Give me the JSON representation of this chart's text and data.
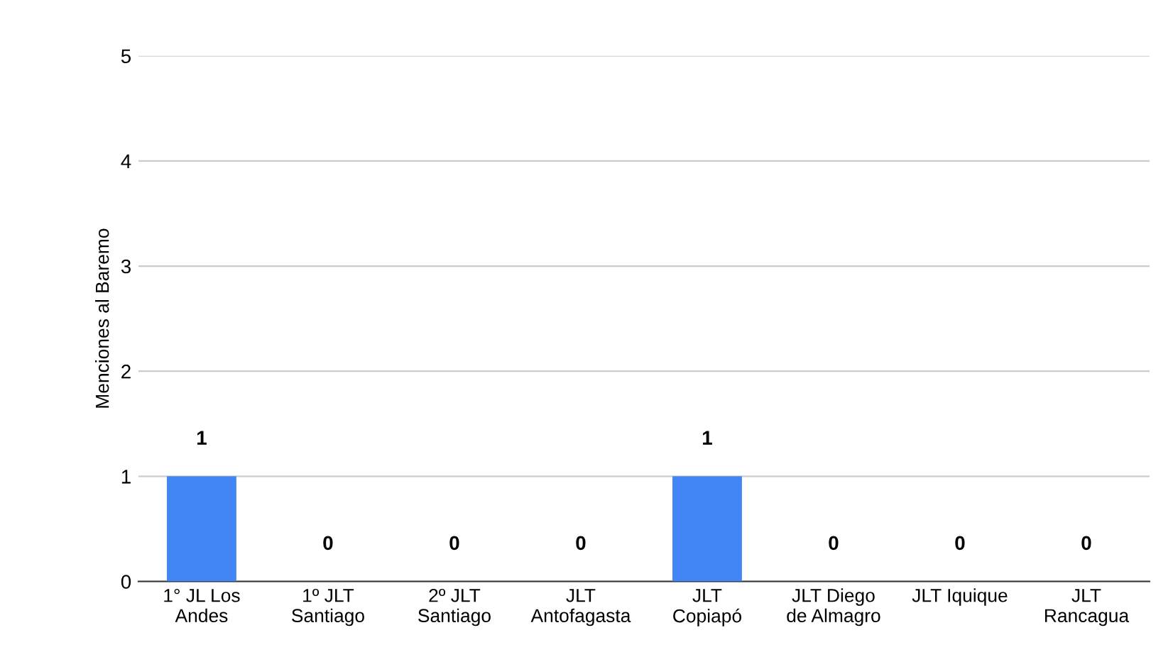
{
  "chart_data": {
    "type": "bar",
    "ylabel": "Menciones al Baremo",
    "categories": [
      "1° JL Los\nAndes",
      "1º JLT\nSantiago",
      "2º JLT\nSantiago",
      "JLT\nAntofagasta",
      "JLT\nCopiapó",
      "JLT Diego\nde Almagro",
      "JLT Iquique",
      "JLT\nRancagua"
    ],
    "values": [
      1,
      0,
      0,
      0,
      1,
      0,
      0,
      0
    ],
    "color": "#4285f4",
    "ylim": [
      0,
      5
    ],
    "yticks": [
      0,
      1,
      2,
      3,
      4,
      5
    ],
    "grid": "y",
    "data_labels": true
  }
}
